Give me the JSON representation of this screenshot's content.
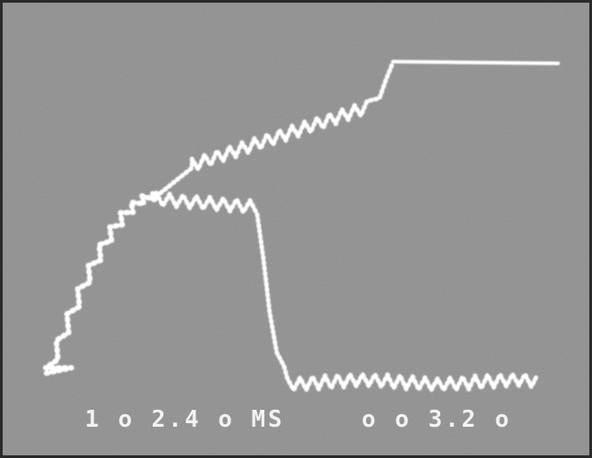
{
  "readout": {
    "left": "1 o 2.4 o MS",
    "right": "o o 3.2 o"
  }
}
